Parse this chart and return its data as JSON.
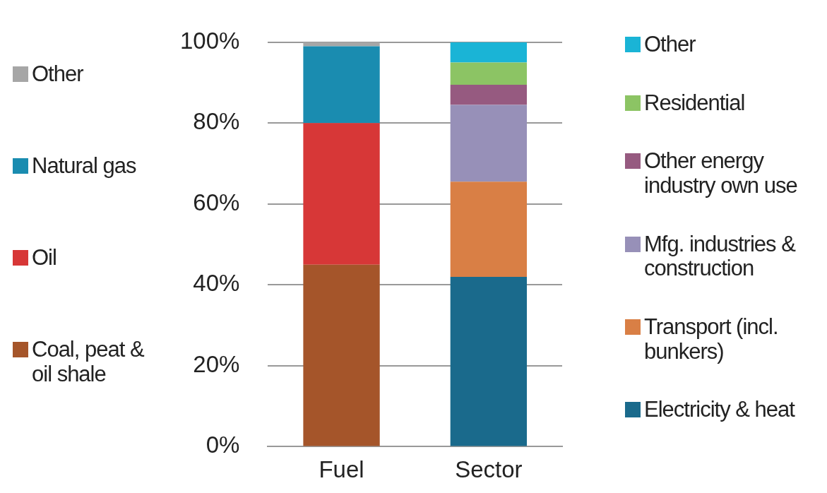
{
  "chart_data": {
    "type": "bar",
    "stacked": true,
    "categories": [
      "Fuel",
      "Sector"
    ],
    "series": [
      {
        "name": "Coal, peat & oil shale",
        "color": "#a5552a",
        "values": [
          45,
          null
        ]
      },
      {
        "name": "Oil",
        "color": "#d73737",
        "values": [
          35,
          null
        ]
      },
      {
        "name": "Natural gas",
        "color": "#1a8cb0",
        "values": [
          19,
          null
        ]
      },
      {
        "name": "Other",
        "color": "#a6a6a6",
        "values": [
          1,
          null
        ]
      },
      {
        "name": "Electricity & heat",
        "color": "#1a6a8c",
        "values": [
          null,
          42
        ]
      },
      {
        "name": "Transport (incl. bunkers)",
        "color": "#d97f45",
        "values": [
          null,
          23.5
        ]
      },
      {
        "name": "Mfg. industries & construction",
        "color": "#9790b8",
        "values": [
          null,
          19
        ]
      },
      {
        "name": "Other energy industry own use",
        "color": "#965a80",
        "values": [
          null,
          5
        ]
      },
      {
        "name": "Residential",
        "color": "#8cc464",
        "values": [
          null,
          5.5
        ]
      },
      {
        "name": "Other",
        "color": "#1ab4d6",
        "values": [
          null,
          5
        ]
      }
    ],
    "ylim": [
      0,
      100
    ],
    "yticks": [
      {
        "value": 0,
        "label": "0%"
      },
      {
        "value": 20,
        "label": "20%"
      },
      {
        "value": 40,
        "label": "40%"
      },
      {
        "value": 60,
        "label": "60%"
      },
      {
        "value": 80,
        "label": "80%"
      },
      {
        "value": 100,
        "label": "100%"
      }
    ],
    "grid": "y",
    "legend": "right"
  }
}
